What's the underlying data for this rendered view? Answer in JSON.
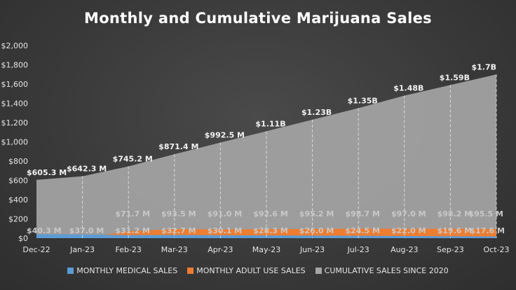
{
  "chart_data": {
    "type": "area",
    "title": "Monthly and Cumulative Marijuana Sales",
    "categories": [
      "Dec-22",
      "Jan-23",
      "Feb-23",
      "Mar-23",
      "Apr-23",
      "May-23",
      "Jun-23",
      "Jul-23",
      "Aug-23",
      "Sep-23",
      "Oct-23"
    ],
    "y_ticks": [
      "$0",
      "$200",
      "$400",
      "$600",
      "$800",
      "$1,000",
      "$1,200",
      "$1,400",
      "$1,600",
      "$1,800",
      "$2,000"
    ],
    "ylim": [
      0,
      2000
    ],
    "grid": false,
    "legend_position": "bottom",
    "series": [
      {
        "name": "MONTHLY MEDICAL SALES",
        "color": "#5b9bd5",
        "values": [
          40.3,
          37.0,
          31.2,
          32.7,
          30.1,
          28.3,
          26.0,
          24.5,
          22.0,
          19.6,
          17.6
        ],
        "labels": [
          "$40.3 M",
          "$37.0 M",
          "$31.2 M",
          "$32.7 M",
          "$30.1 M",
          "$28.3 M",
          "$26.0 M",
          "$24.5 M",
          "$22.0 M",
          "$19.6 M",
          "$17.6 M"
        ]
      },
      {
        "name": "MONTHLY ADULT USE SALES",
        "color": "#ed7d31",
        "values": [
          0,
          0,
          71.7,
          93.5,
          91.0,
          92.6,
          95.2,
          98.7,
          97.0,
          98.2,
          95.5
        ],
        "labels": [
          "",
          "",
          "$71.7 M",
          "$93.5 M",
          "$91.0 M",
          "$92.6 M",
          "$95.2 M",
          "$98.7 M",
          "$97.0 M",
          "$98.2 M",
          "$95.5 M"
        ]
      },
      {
        "name": "CUMULATIVE SALES SINCE 2020",
        "color": "#a5a5a5",
        "values": [
          605.3,
          642.3,
          745.2,
          871.4,
          992.5,
          1110,
          1230,
          1350,
          1480,
          1590,
          1700
        ],
        "labels": [
          "$605.3 M",
          "$642.3 M",
          "$745.2 M",
          "$871.4 M",
          "$992.5 M",
          "$1.11B",
          "$1.23B",
          "$1.35B",
          "$1.48B",
          "$1.59B",
          "$1.7B"
        ]
      }
    ]
  }
}
